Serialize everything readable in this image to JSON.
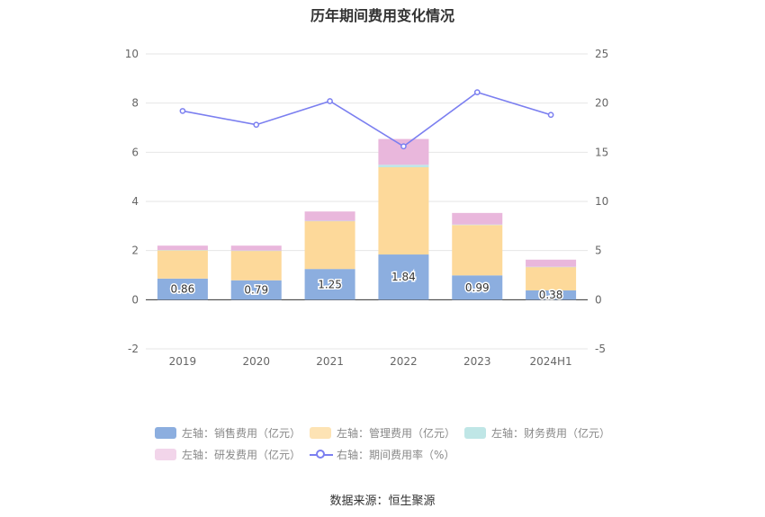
{
  "title": "历年期间费用变化情况",
  "source": "数据来源：恒生聚源",
  "colors": {
    "sales": "#8caedf",
    "admin": "#fdd99a",
    "finance": "#bfe6e6",
    "rnd": "#e9b7dc",
    "ratio": "#7b7ff0",
    "grid": "#e6e6e6",
    "axis": "#333333"
  },
  "legend": [
    {
      "label": "左轴：销售费用（亿元）",
      "color": "#8caedf",
      "type": "bar"
    },
    {
      "label": "左轴：管理费用（亿元）",
      "color": "#fde3b4",
      "type": "bar"
    },
    {
      "label": "左轴：财务费用（亿元）",
      "color": "#bfe6e6",
      "type": "bar"
    },
    {
      "label": "左轴：研发费用（亿元）",
      "color": "#f2d5ea",
      "type": "bar"
    },
    {
      "label": "右轴：期间费用率（%）",
      "color": "#7b7ff0",
      "type": "line"
    }
  ],
  "chart_data": {
    "type": "bar",
    "stacked": true,
    "categories": [
      "2019",
      "2020",
      "2021",
      "2022",
      "2023",
      "2024H1"
    ],
    "series": [
      {
        "name": "左轴：销售费用（亿元）",
        "axis": "left",
        "values": [
          0.86,
          0.79,
          1.25,
          1.84,
          0.99,
          0.38
        ],
        "labels": [
          "0.86",
          "0.79",
          "1.25",
          "1.84",
          "0.99",
          "0.38"
        ]
      },
      {
        "name": "左轴：管理费用（亿元）",
        "axis": "left",
        "values": [
          1.15,
          1.2,
          1.95,
          3.55,
          2.05,
          0.95
        ]
      },
      {
        "name": "左轴：财务费用（亿元）",
        "axis": "left",
        "values": [
          0.01,
          0.01,
          0.01,
          0.1,
          0.02,
          0.01
        ]
      },
      {
        "name": "左轴：研发费用（亿元）",
        "axis": "left",
        "values": [
          0.18,
          0.2,
          0.38,
          1.05,
          0.47,
          0.29
        ]
      },
      {
        "name": "右轴：期间费用率（%）",
        "axis": "right",
        "type": "line",
        "values": [
          19.2,
          17.8,
          20.2,
          15.6,
          21.1,
          18.8
        ]
      }
    ],
    "y_left": {
      "min": -2,
      "max": 10,
      "ticks": [
        "-2",
        "0",
        "2",
        "4",
        "6",
        "8",
        "10"
      ]
    },
    "y_right": {
      "min": -5,
      "max": 25,
      "ticks": [
        "-5",
        "0",
        "5",
        "10",
        "15",
        "20",
        "25"
      ]
    },
    "grid": true,
    "legend_position": "bottom"
  }
}
